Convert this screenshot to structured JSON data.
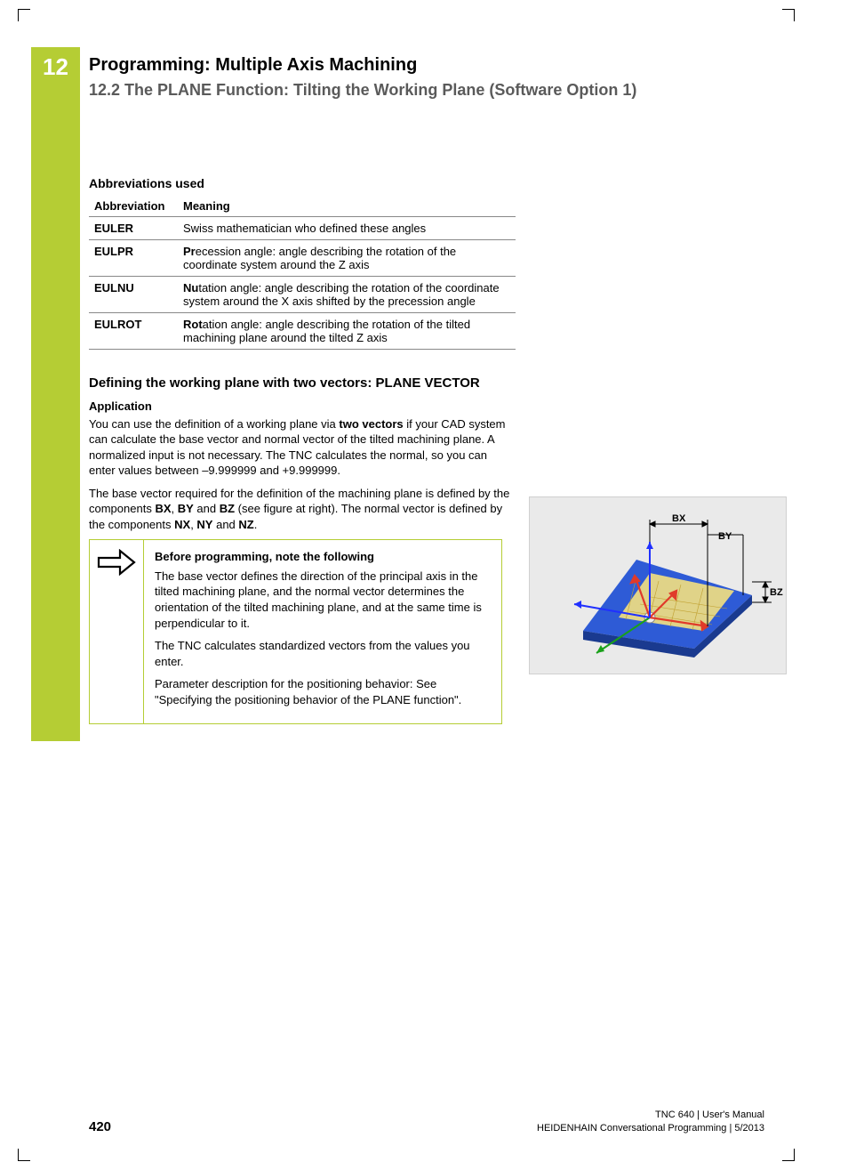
{
  "chapter_number": "12",
  "header": {
    "title": "Programming: Multiple Axis Machining",
    "subtitle": "12.2   The PLANE Function: Tilting the Working Plane (Software Option 1)"
  },
  "abbr_section": {
    "title": "Abbreviations used",
    "columns": [
      "Abbreviation",
      "Meaning"
    ],
    "rows": [
      {
        "abbr": "EULER",
        "prefix": "",
        "rest": "Swiss mathematician who defined these angles"
      },
      {
        "abbr": "EULPR",
        "prefix": "Pr",
        "rest": "ecession angle: angle describing the rotation of the coordinate system around the Z axis"
      },
      {
        "abbr": "EULNU",
        "prefix": "Nu",
        "rest": "tation angle: angle describing the rotation of the coordinate system around the X axis shifted by the precession angle"
      },
      {
        "abbr": "EULROT",
        "prefix": "Rot",
        "rest": "ation angle: angle describing the rotation of the tilted machining plane around the tilted Z axis"
      }
    ]
  },
  "section": {
    "heading": "Defining the working plane with two vectors: PLANE VECTOR",
    "sub": "Application",
    "p1_a": "You can use the definition of a working plane via ",
    "p1_b": "two vectors",
    "p1_c": " if your CAD system can calculate the base vector and normal vector of the tilted machining plane. A normalized input is not necessary. The TNC calculates the normal, so you can enter values between –9.999999 and +9.999999.",
    "p2_a": "The base vector required for the definition of the machining plane is defined by the components ",
    "p2_bx": "BX",
    "p2_by": "BY",
    "p2_bz": "BZ",
    "p2_b": " (see figure at right). The normal vector is defined by the components ",
    "p2_nx": "NX",
    "p2_ny": "NY",
    "p2_nz": "NZ",
    "p2_end": "."
  },
  "note": {
    "title": "Before programming, note the following",
    "p1": "The base vector defines the direction of the principal axis in the tilted machining plane, and the normal vector determines the orientation of the tilted machining plane, and at the same time is perpendicular to it.",
    "p2": "The TNC calculates standardized vectors from the values you enter.",
    "p3": "Parameter description for the positioning behavior: See \"Specifying the positioning behavior of the PLANE function\"."
  },
  "figure": {
    "labels": {
      "bx": "BX",
      "by": "BY",
      "bz": "BZ"
    },
    "colors": {
      "bg": "#eaeaea",
      "plane_front": "#2e5bd6",
      "plane_side": "#1a3a8f",
      "overlay": "#ffe97a",
      "axis_red": "#e03a2a",
      "axis_blue": "#2030ff",
      "axis_green": "#1aa01a",
      "dim_line": "#000000"
    }
  },
  "footer": {
    "page": "420",
    "line1": "TNC 640 | User's Manual",
    "line2": "HEIDENHAIN Conversational Programming | 5/2013"
  }
}
